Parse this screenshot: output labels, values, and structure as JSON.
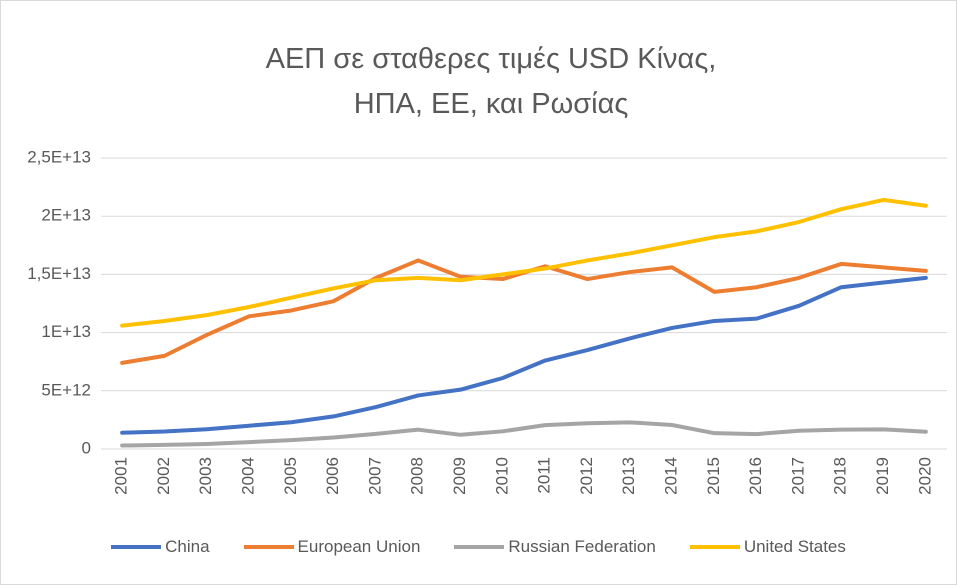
{
  "chart_data": {
    "type": "line",
    "title": "ΑΕΠ σε σταθερες τιμές USD Κίνας, ΗΠΑ, ΕΕ, και Ρωσίας",
    "categories": [
      "2001",
      "2002",
      "2003",
      "2004",
      "2005",
      "2006",
      "2007",
      "2008",
      "2009",
      "2010",
      "2011",
      "2012",
      "2013",
      "2014",
      "2015",
      "2016",
      "2017",
      "2018",
      "2019",
      "2020"
    ],
    "series": [
      {
        "name": "China",
        "color": "#4472c4",
        "values": [
          1400000000000.0,
          1500000000000.0,
          1700000000000.0,
          2000000000000.0,
          2300000000000.0,
          2800000000000.0,
          3600000000000.0,
          4600000000000.0,
          5100000000000.0,
          6100000000000.0,
          7600000000000.0,
          8500000000000.0,
          9500000000000.0,
          10400000000000.0,
          11000000000000.0,
          11200000000000.0,
          12300000000000.0,
          13900000000000.0,
          14300000000000.0,
          14700000000000.0
        ]
      },
      {
        "name": "European Union",
        "color": "#ed7d31",
        "values": [
          7400000000000.0,
          8000000000000.0,
          9800000000000.0,
          11400000000000.0,
          11900000000000.0,
          12700000000000.0,
          14700000000000.0,
          16200000000000.0,
          14800000000000.0,
          14600000000000.0,
          15700000000000.0,
          14600000000000.0,
          15200000000000.0,
          15600000000000.0,
          13500000000000.0,
          13900000000000.0,
          14700000000000.0,
          15900000000000.0,
          15600000000000.0,
          15300000000000.0
        ]
      },
      {
        "name": "Russian Federation",
        "color": "#a5a5a5",
        "values": [
          300000000000.0,
          350000000000.0,
          430000000000.0,
          590000000000.0,
          760000000000.0,
          990000000000.0,
          1300000000000.0,
          1660000000000.0,
          1220000000000.0,
          1520000000000.0,
          2050000000000.0,
          2210000000000.0,
          2290000000000.0,
          2060000000000.0,
          1360000000000.0,
          1280000000000.0,
          1570000000000.0,
          1660000000000.0,
          1690000000000.0,
          1480000000000.0
        ]
      },
      {
        "name": "United States",
        "color": "#ffc000",
        "values": [
          10600000000000.0,
          11000000000000.0,
          11500000000000.0,
          12200000000000.0,
          13000000000000.0,
          13800000000000.0,
          14500000000000.0,
          14700000000000.0,
          14500000000000.0,
          15000000000000.0,
          15500000000000.0,
          16200000000000.0,
          16800000000000.0,
          17500000000000.0,
          18200000000000.0,
          18700000000000.0,
          19500000000000.0,
          20600000000000.0,
          21400000000000.0,
          20900000000000.0
        ]
      }
    ],
    "ylim": [
      0,
      25000000000000.0
    ],
    "yticks": [
      0,
      {
        "value": 5000000000000.0,
        "label": "5E+12"
      },
      {
        "value": 10000000000000.0,
        "label": "1E+13"
      },
      {
        "value": 15000000000000.0,
        "label": "1,5E+13"
      },
      {
        "value": 20000000000000.0,
        "label": "2E+13"
      },
      {
        "value": 25000000000000.0,
        "label": "2,5E+13"
      }
    ],
    "grid": true,
    "legend": "bottom"
  }
}
